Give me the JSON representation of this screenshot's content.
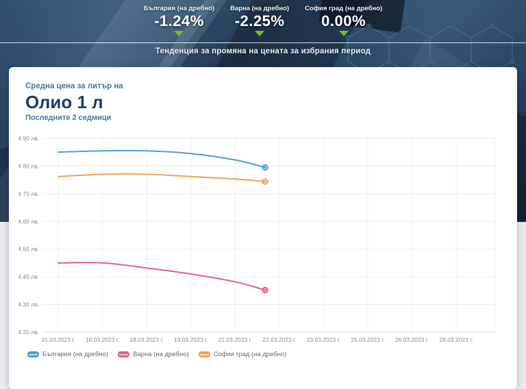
{
  "header": {
    "stats": [
      {
        "label": "България (на дребно)",
        "value": "-1.24%",
        "trend": "down"
      },
      {
        "label": "Варна (на дребно)",
        "value": "-2.25%",
        "trend": "down"
      },
      {
        "label": "София град (на дребно)",
        "value": "0.00%",
        "trend": "down"
      }
    ],
    "trend_color": "#7db928",
    "subtitle": "Тенденция за промяна на цената за избрания период"
  },
  "card": {
    "pretitle": "Средна цена за литър на",
    "title": "Олио 1 л",
    "subtitle": "Последните 2 седмици"
  },
  "chart_data": {
    "type": "line",
    "title": "Олио 1 л — средна цена за литър",
    "categories": [
      "15.03.2023 г.",
      "16.03.2023 г.",
      "18.03.2023 г.",
      "19.03.2023 г.",
      "21.03.2023 г.",
      "22.03.2023 г.",
      "23.03.2023 г.",
      "25.03.2023 г.",
      "26.03.2023 г.",
      "28.03.2023 г."
    ],
    "ytick_labels": [
      "4.90 лв.",
      "4.80 лв.",
      "4.70 лв.",
      "4.60 лв.",
      "4.50 лв.",
      "4.40 лв.",
      "4.30 лв.",
      "4.20 лв."
    ],
    "ytick_values": [
      4.9,
      4.8,
      4.7,
      4.6,
      4.5,
      4.4,
      4.3,
      4.2
    ],
    "ylim": [
      4.2,
      4.9
    ],
    "grid": true,
    "legend_position": "bottom-left",
    "point_positions": [
      0,
      1,
      2,
      3,
      4,
      4.68
    ],
    "series": [
      {
        "name": "България (на дребно)",
        "color": "#4f9dd4",
        "values": [
          4.85,
          4.855,
          4.855,
          4.845,
          4.822,
          4.795
        ]
      },
      {
        "name": "Варна (на дребно)",
        "color": "#e2607c",
        "values": [
          4.45,
          4.45,
          4.432,
          4.41,
          4.382,
          4.352
        ]
      },
      {
        "name": "София град (на дребно)",
        "color": "#f0a254",
        "values": [
          4.762,
          4.77,
          4.77,
          4.762,
          4.753,
          4.744
        ]
      }
    ]
  }
}
